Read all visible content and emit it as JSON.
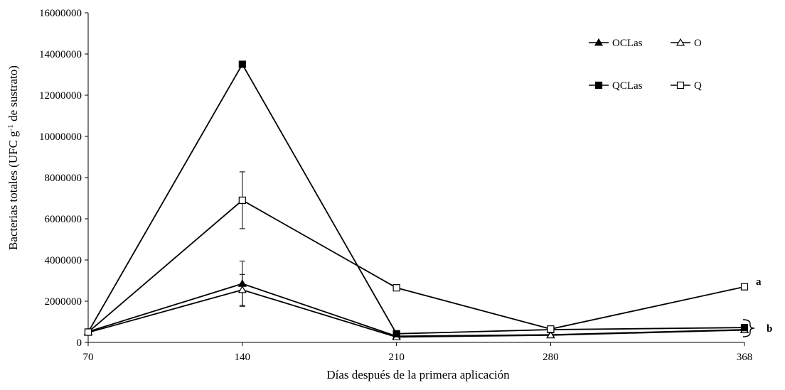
{
  "chart_data": {
    "type": "line",
    "title": "",
    "xlabel": "Días después de la primera aplicación",
    "ylabel": "Bacterias totales (UFC g-1 de sustrato)",
    "x": [
      70,
      140,
      210,
      280,
      368
    ],
    "xticks": [
      "70",
      "140",
      "210",
      "280",
      "368"
    ],
    "ylim": [
      0,
      16000000
    ],
    "yticks": [
      "0",
      "2000000",
      "4000000",
      "6000000",
      "8000000",
      "10000000",
      "12000000",
      "14000000",
      "16000000"
    ],
    "grid": false,
    "legend_position": "top-right",
    "series": [
      {
        "name": "OCLas",
        "marker": "filled-triangle",
        "values": [
          520000,
          2850000,
          300000,
          370000,
          620000
        ],
        "errors": [
          0,
          1100000,
          0,
          0,
          0
        ]
      },
      {
        "name": "O",
        "marker": "open-triangle",
        "values": [
          480000,
          2550000,
          260000,
          350000,
          600000
        ],
        "errors": [
          0,
          750000,
          0,
          0,
          0
        ]
      },
      {
        "name": "QCLas",
        "marker": "filled-square",
        "values": [
          500000,
          13500000,
          420000,
          620000,
          720000
        ],
        "errors": [
          0,
          0,
          0,
          0,
          0
        ]
      },
      {
        "name": "Q",
        "marker": "open-square",
        "values": [
          500000,
          6900000,
          2650000,
          650000,
          2700000
        ],
        "errors": [
          0,
          1380000,
          0,
          0,
          0
        ]
      }
    ],
    "annotations": [
      {
        "text": "a",
        "target": "Q"
      },
      {
        "text": "b",
        "target": "OCLas, O, QCLas"
      }
    ]
  }
}
